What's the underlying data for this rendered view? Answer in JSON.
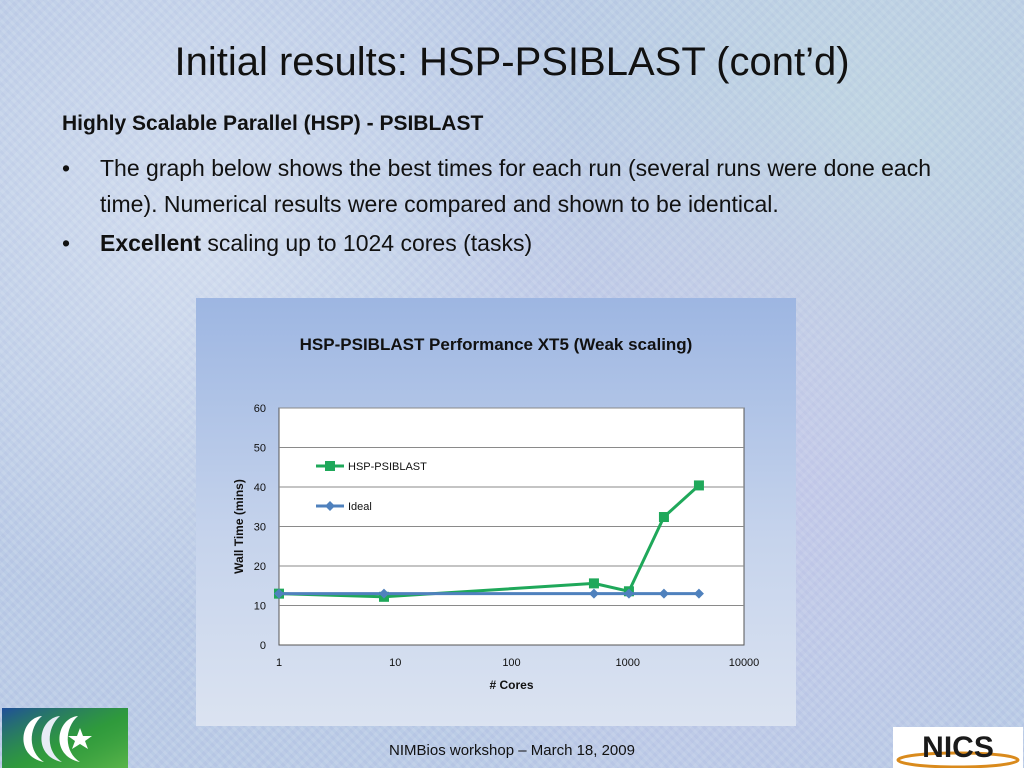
{
  "slide": {
    "title": "Initial results: HSP-PSIBLAST (cont’d)",
    "subtitle": "Highly Scalable Parallel (HSP) - PSIBLAST",
    "bullets": [
      {
        "bold": "",
        "text": "The graph below shows the best times for each run (several runs were done each time). Numerical results were compared and shown to be identical."
      },
      {
        "bold": "Excellent",
        "text": " scaling up to 1024 cores (tasks)"
      }
    ],
    "bullet_glyph": "•",
    "footer": "NIMBios workshop – March 18, 2009",
    "logo_right_text": "NICS"
  },
  "icons": {
    "left_logo": "css-star-logo",
    "right_logo": "nics-logo"
  },
  "chart_data": {
    "type": "line",
    "title": "HSP-PSIBLAST Performance XT5 (Weak scaling)",
    "xlabel": "# Cores",
    "ylabel": "Wall Time (mins)",
    "xscale": "log",
    "xlim": [
      1,
      10000
    ],
    "ylim": [
      0,
      60
    ],
    "xticks": [
      1,
      10,
      100,
      1000,
      10000
    ],
    "yticks": [
      0,
      10,
      20,
      30,
      40,
      50,
      60
    ],
    "grid": "horizontal",
    "legend": "top-left inside plot",
    "series": [
      {
        "name": "HSP-PSIBLAST",
        "color": "#1fa85a",
        "marker": "square",
        "x": [
          1,
          8,
          512,
          1024,
          2048,
          4096
        ],
        "y": [
          13.0,
          12.2,
          15.6,
          13.6,
          32.4,
          40.4
        ]
      },
      {
        "name": "Ideal",
        "color": "#4f81bd",
        "marker": "diamond",
        "x": [
          1,
          8,
          512,
          1024,
          2048,
          4096
        ],
        "y": [
          13.0,
          13.0,
          13.0,
          13.0,
          13.0,
          13.0
        ]
      }
    ]
  }
}
